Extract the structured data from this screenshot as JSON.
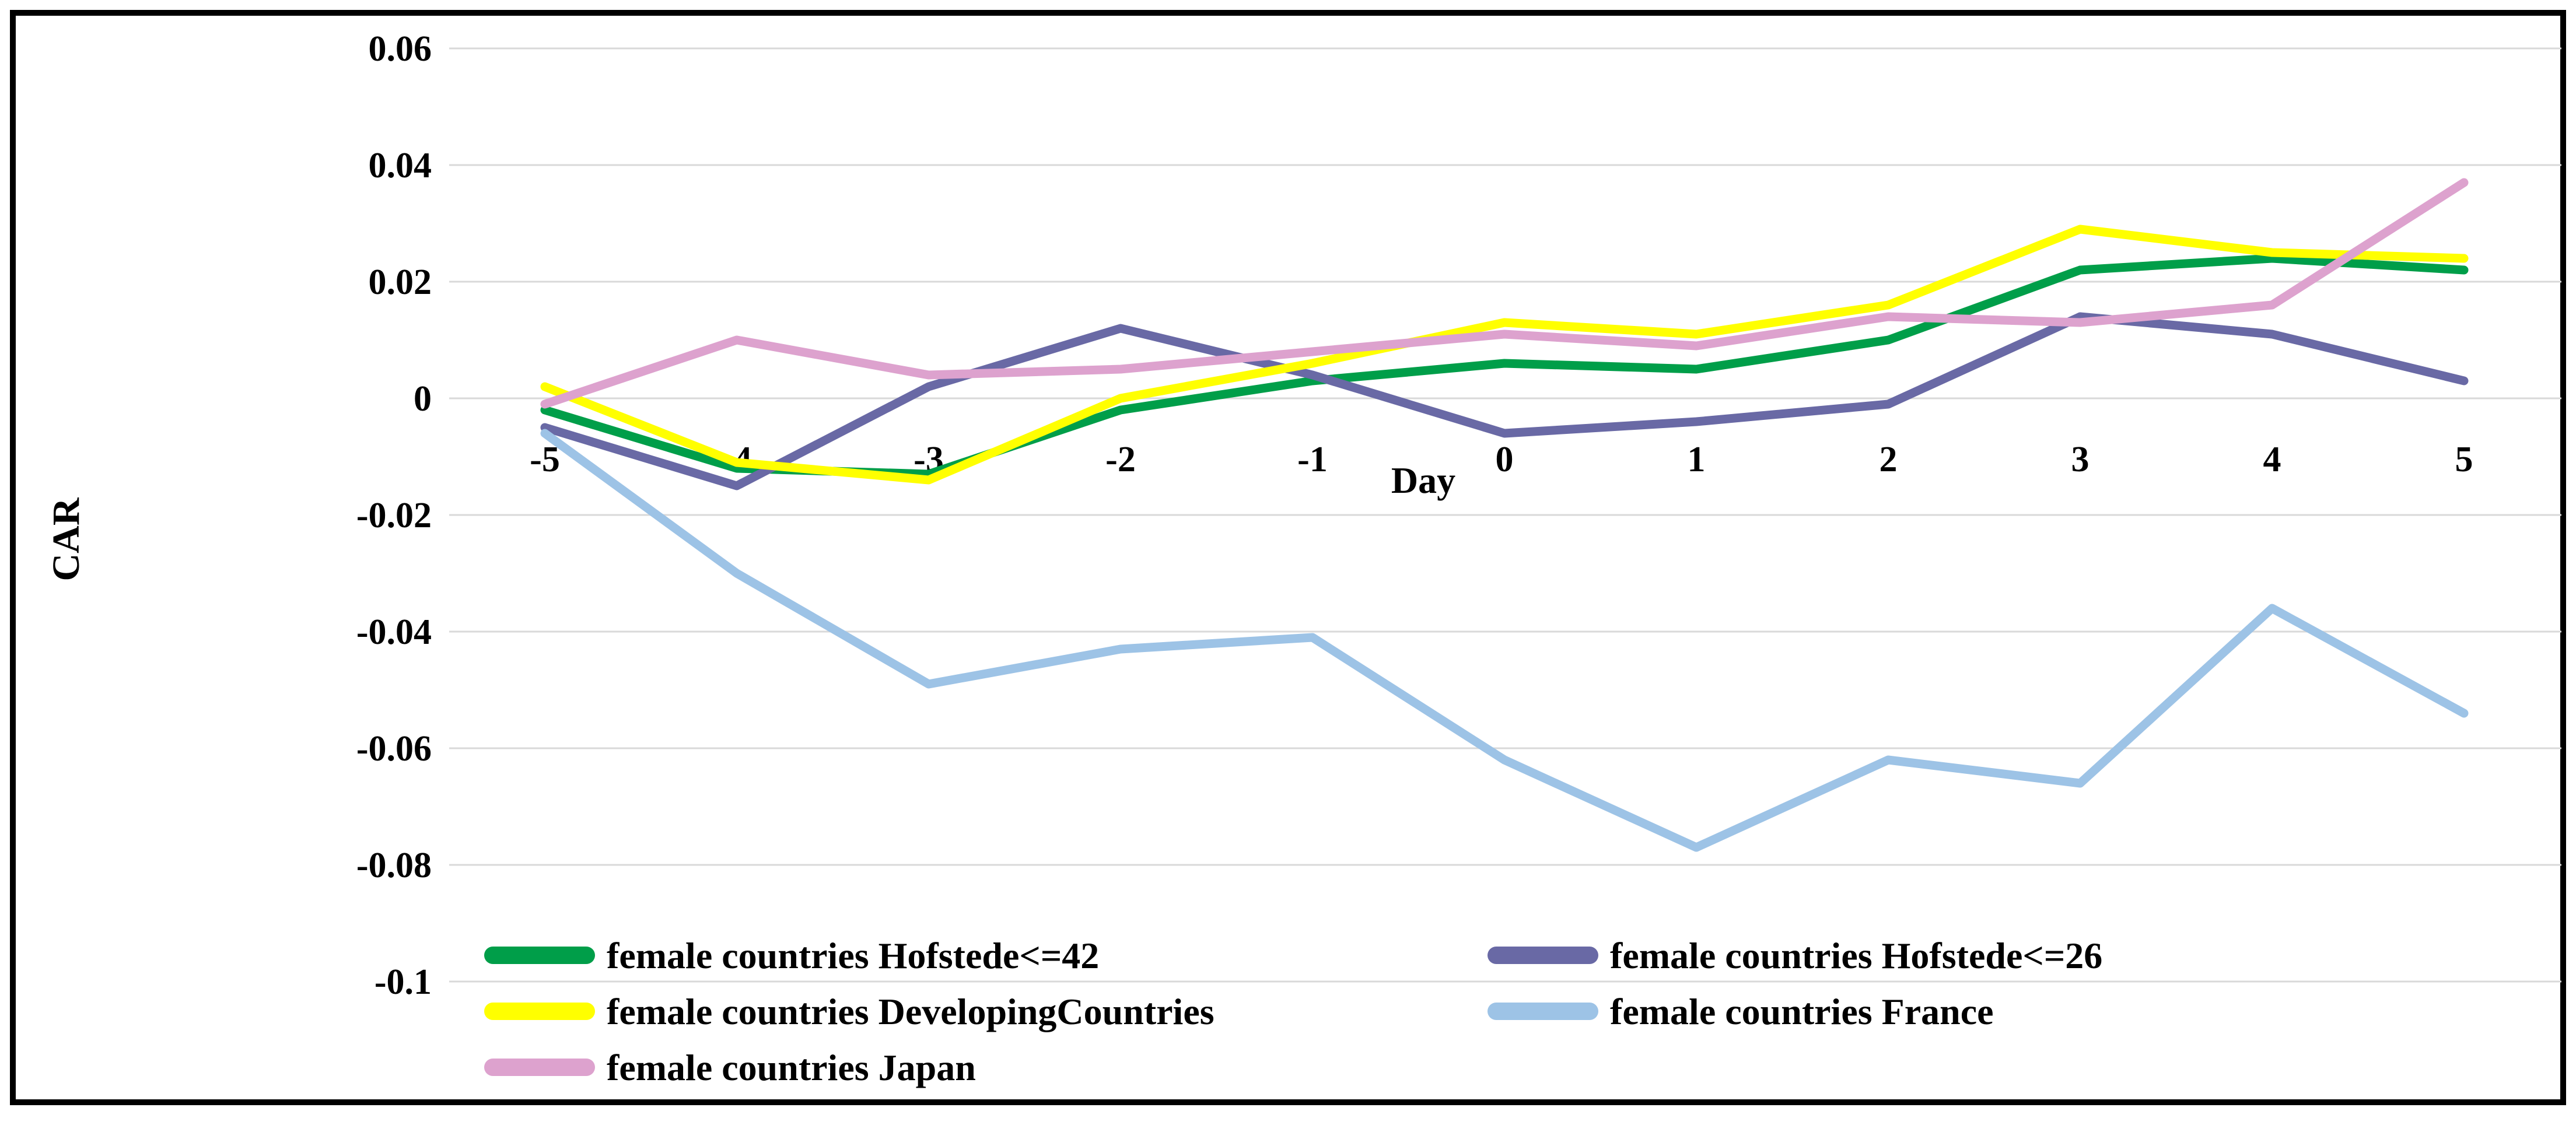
{
  "chart_data": {
    "type": "line",
    "title": "",
    "xlabel": "Day",
    "ylabel": "CAR",
    "categories": [
      -5,
      -4,
      -3,
      -2,
      -1,
      0,
      1,
      2,
      3,
      4,
      5
    ],
    "x_tick_labels": [
      "-5",
      "-4",
      "-3",
      "-2",
      "-1",
      "0",
      "1",
      "2",
      "3",
      "4",
      "5"
    ],
    "y_tick_labels": [
      "0.06",
      "0.04",
      "0.02",
      "0",
      "-0.02",
      "-0.04",
      "-0.06",
      "-0.08",
      "-0.1"
    ],
    "ylim": [
      -0.12,
      0.066
    ],
    "grid": "horizontal-only",
    "legend_position": "bottom-inside-two-columns",
    "colors": {
      "gridline": "#D9D9D9",
      "border": "#000000",
      "text": "#000000",
      "background": "#FFFFFF"
    },
    "series": [
      {
        "name": "female countries Hofstede<=42",
        "color": "#009E49",
        "values": [
          -0.002,
          -0.012,
          -0.013,
          -0.002,
          0.003,
          0.006,
          0.005,
          0.01,
          0.022,
          0.024,
          0.022
        ]
      },
      {
        "name": "female countries Hofstede<=26",
        "color": "#6969A5",
        "values": [
          -0.005,
          -0.015,
          0.002,
          0.012,
          0.004,
          -0.006,
          -0.004,
          -0.001,
          0.014,
          0.011,
          0.003
        ]
      },
      {
        "name": "female countries DevelopingCountries",
        "color": "#FFFF00",
        "values": [
          0.002,
          -0.011,
          -0.014,
          0.0,
          0.006,
          0.013,
          0.011,
          0.016,
          0.029,
          0.025,
          0.024
        ]
      },
      {
        "name": "female countries France",
        "color": "#9DC3E6",
        "values": [
          -0.006,
          -0.03,
          -0.049,
          -0.043,
          -0.041,
          -0.062,
          -0.077,
          -0.062,
          -0.066,
          -0.036,
          -0.054
        ]
      },
      {
        "name": "female countries Japan",
        "color": "#DDA2CE",
        "values": [
          -0.001,
          0.01,
          0.004,
          0.005,
          0.008,
          0.011,
          0.009,
          0.014,
          0.013,
          0.016,
          0.037
        ]
      }
    ]
  }
}
